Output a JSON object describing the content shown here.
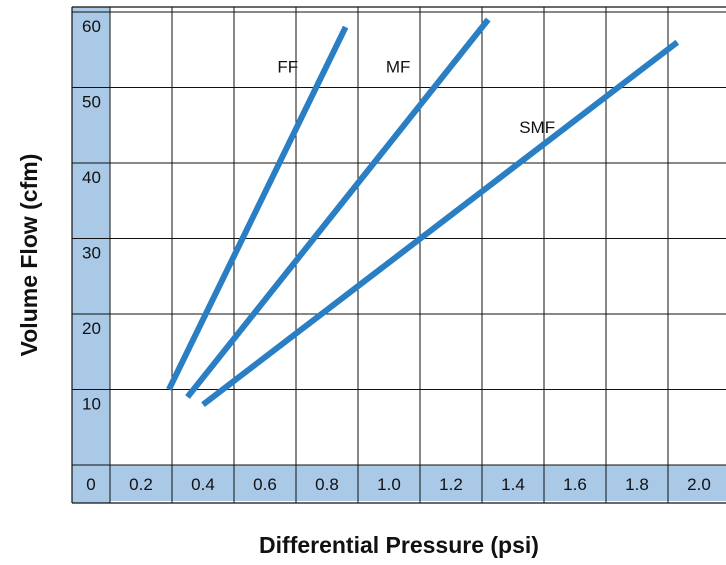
{
  "chart_data": {
    "type": "line",
    "xlabel": "Differential Pressure (psi)",
    "ylabel": "Volume Flow (cfm)",
    "xlim": [
      0,
      2.0
    ],
    "ylim": [
      0,
      60
    ],
    "x_ticks": [
      "0",
      "0.2",
      "0.4",
      "0.6",
      "0.8",
      "1.0",
      "1.2",
      "1.4",
      "1.6",
      "1.8",
      "2.0"
    ],
    "y_ticks": [
      "0",
      "10",
      "20",
      "30",
      "40",
      "50",
      "60"
    ],
    "grid": true,
    "series": [
      {
        "name": "FF",
        "points": [
          [
            0.19,
            10
          ],
          [
            0.76,
            58
          ]
        ]
      },
      {
        "name": "MF",
        "points": [
          [
            0.25,
            9
          ],
          [
            1.22,
            59
          ]
        ]
      },
      {
        "name": "SMF",
        "points": [
          [
            0.3,
            8
          ],
          [
            1.83,
            56
          ]
        ]
      }
    ],
    "colors": {
      "line": "#2a7fc4",
      "axis_band": "#a9c9e6",
      "grid": "#111111"
    }
  }
}
